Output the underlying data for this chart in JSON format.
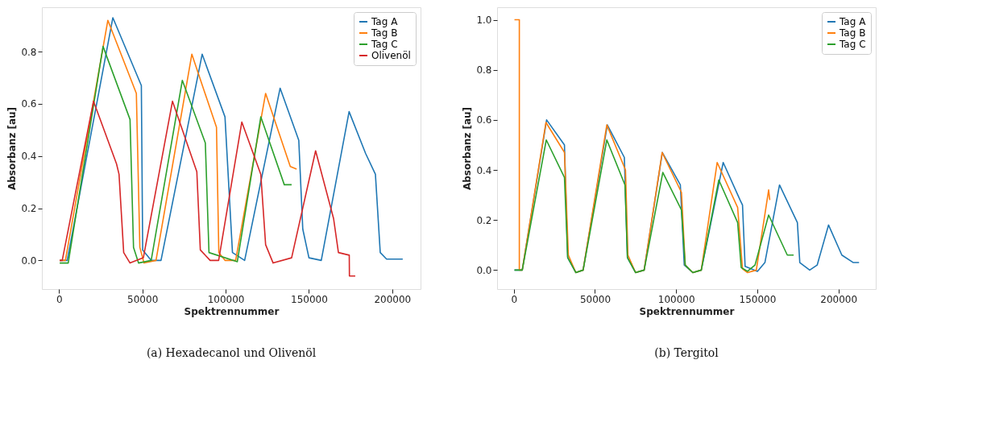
{
  "chart_data": [
    {
      "type": "line",
      "xlabel": "Spektrennummer",
      "ylabel": "Absorbanz [au]",
      "annotations": [
        "(a) Hexadecanol und Olivenöl"
      ],
      "xlim": [
        -10300,
        217000
      ],
      "ylim": [
        -0.11,
        0.97
      ],
      "xticks": [
        0,
        50000,
        100000,
        150000,
        200000
      ],
      "yticks": [
        {
          "value": 0,
          "label": "0.0"
        },
        {
          "value": 0.2,
          "label": "0.2"
        },
        {
          "value": 0.4,
          "label": "0.4"
        },
        {
          "value": 0.6,
          "label": "0.6"
        },
        {
          "value": 0.8,
          "label": "0.8"
        }
      ],
      "grid": false,
      "legend": "top right",
      "line_style": "solid",
      "marker": "none",
      "series": [
        {
          "name": "Tag A",
          "color": "#1f77b4",
          "x": [
            400,
            4900,
            32300,
            49400,
            50200,
            55300,
            61200,
            85900,
            99600,
            104100,
            111400,
            132700,
            143900,
            146300,
            150000,
            157400,
            174100,
            184000,
            189900,
            192800,
            196600,
            206300
          ],
          "values": [
            0.0,
            0.0,
            0.93,
            0.67,
            0.04,
            0.0,
            0.0,
            0.79,
            0.55,
            0.03,
            0.0,
            0.66,
            0.46,
            0.12,
            0.01,
            0.0,
            0.57,
            0.41,
            0.33,
            0.03,
            0.005,
            0.005
          ]
        },
        {
          "name": "Tag B",
          "color": "#ff7f0e",
          "x": [
            400,
            3800,
            29300,
            46400,
            48500,
            51000,
            58200,
            79700,
            94500,
            95900,
            99600,
            106000,
            124000,
            138800,
            142600
          ],
          "values": [
            0.0,
            0.0,
            0.92,
            0.64,
            0.05,
            -0.01,
            0.0,
            0.79,
            0.51,
            0.03,
            0.0,
            0.0,
            0.64,
            0.36,
            0.35
          ]
        },
        {
          "name": "Tag C",
          "color": "#2ca02c",
          "x": [
            400,
            5500,
            26400,
            42600,
            44700,
            47700,
            55300,
            74000,
            87800,
            90000,
            107000,
            121100,
            135200,
            139600
          ],
          "values": [
            -0.01,
            -0.01,
            0.82,
            0.54,
            0.05,
            -0.01,
            0.0,
            0.69,
            0.45,
            0.03,
            -0.005,
            0.55,
            0.29,
            0.29
          ]
        },
        {
          "name": "Olivenöl",
          "color": "#d62728",
          "x": [
            400,
            1900,
            20700,
            34500,
            36000,
            38800,
            42600,
            50600,
            68100,
            82700,
            84800,
            90700,
            95800,
            109700,
            121100,
            124000,
            128500,
            139600,
            154000,
            164800,
            167700,
            174200,
            174300,
            177800
          ],
          "values": [
            0.0,
            0.0,
            0.61,
            0.37,
            0.33,
            0.03,
            -0.01,
            0.01,
            0.61,
            0.34,
            0.04,
            0.0,
            0.0,
            0.53,
            0.33,
            0.06,
            -0.01,
            0.01,
            0.42,
            0.16,
            0.03,
            0.02,
            -0.06,
            -0.06
          ]
        }
      ]
    },
    {
      "type": "line",
      "xlabel": "Spektrennummer",
      "ylabel": "Absorbanz [au]",
      "annotations": [
        "(b) Tergitol"
      ],
      "xlim": [
        -10300,
        223000
      ],
      "ylim": [
        -0.076,
        1.05
      ],
      "xticks": [
        0,
        50000,
        100000,
        150000,
        200000
      ],
      "yticks": [
        {
          "value": 0,
          "label": "0.0"
        },
        {
          "value": 0.2,
          "label": "0.2"
        },
        {
          "value": 0.4,
          "label": "0.4"
        },
        {
          "value": 0.6,
          "label": "0.6"
        },
        {
          "value": 0.8,
          "label": "0.8"
        },
        {
          "value": 1,
          "label": "1.0"
        }
      ],
      "grid": false,
      "legend": "top right",
      "line_style": "solid",
      "marker": "none",
      "series": [
        {
          "name": "Tag A",
          "color": "#1f77b4",
          "x": [
            400,
            5200,
            20200,
            31200,
            33200,
            38200,
            42700,
            57600,
            68100,
            70000,
            75000,
            80300,
            91500,
            102600,
            105000,
            110300,
            115500,
            129000,
            139400,
            140900,
            142500,
            150100,
            154700,
            163700,
            174700,
            176200,
            182300,
            186900,
            193900,
            202100,
            209200,
            212700
          ],
          "values": [
            0.0,
            0.0,
            0.6,
            0.5,
            0.05,
            -0.01,
            0.0,
            0.58,
            0.45,
            0.05,
            -0.01,
            0.0,
            0.47,
            0.34,
            0.02,
            -0.01,
            0.0,
            0.43,
            0.28,
            0.26,
            0.015,
            -0.005,
            0.03,
            0.34,
            0.19,
            0.03,
            0.0,
            0.02,
            0.18,
            0.06,
            0.03,
            0.03
          ]
        },
        {
          "name": "Tag B",
          "color": "#ff7f0e",
          "x": [
            400,
            3400,
            3400,
            5200,
            19800,
            31200,
            33600,
            38200,
            42700,
            57300,
            68800,
            70300,
            75000,
            80300,
            91400,
            103300,
            105600,
            110300,
            115500,
            125300,
            137900,
            140900,
            144000,
            149400,
            157000,
            157700
          ],
          "values": [
            1.0,
            1.0,
            0.0,
            0.0,
            0.59,
            0.47,
            0.06,
            -0.01,
            0.0,
            0.58,
            0.4,
            0.06,
            -0.01,
            0.0,
            0.47,
            0.31,
            0.02,
            -0.01,
            0.0,
            0.43,
            0.25,
            0.005,
            -0.01,
            0.0,
            0.32,
            0.28
          ]
        },
        {
          "name": "Tag C",
          "color": "#2ca02c",
          "x": [
            400,
            5200,
            20000,
            31200,
            33200,
            38200,
            42700,
            57300,
            68500,
            70000,
            75000,
            80300,
            91800,
            103300,
            105600,
            110300,
            115500,
            126300,
            137900,
            140100,
            144000,
            148600,
            157000,
            168500,
            172400
          ],
          "values": [
            0.0,
            0.0,
            0.52,
            0.37,
            0.05,
            -0.01,
            0.0,
            0.52,
            0.34,
            0.05,
            -0.01,
            0.0,
            0.39,
            0.24,
            0.02,
            -0.01,
            0.0,
            0.36,
            0.19,
            0.01,
            -0.005,
            0.02,
            0.22,
            0.06,
            0.06
          ]
        }
      ]
    }
  ]
}
